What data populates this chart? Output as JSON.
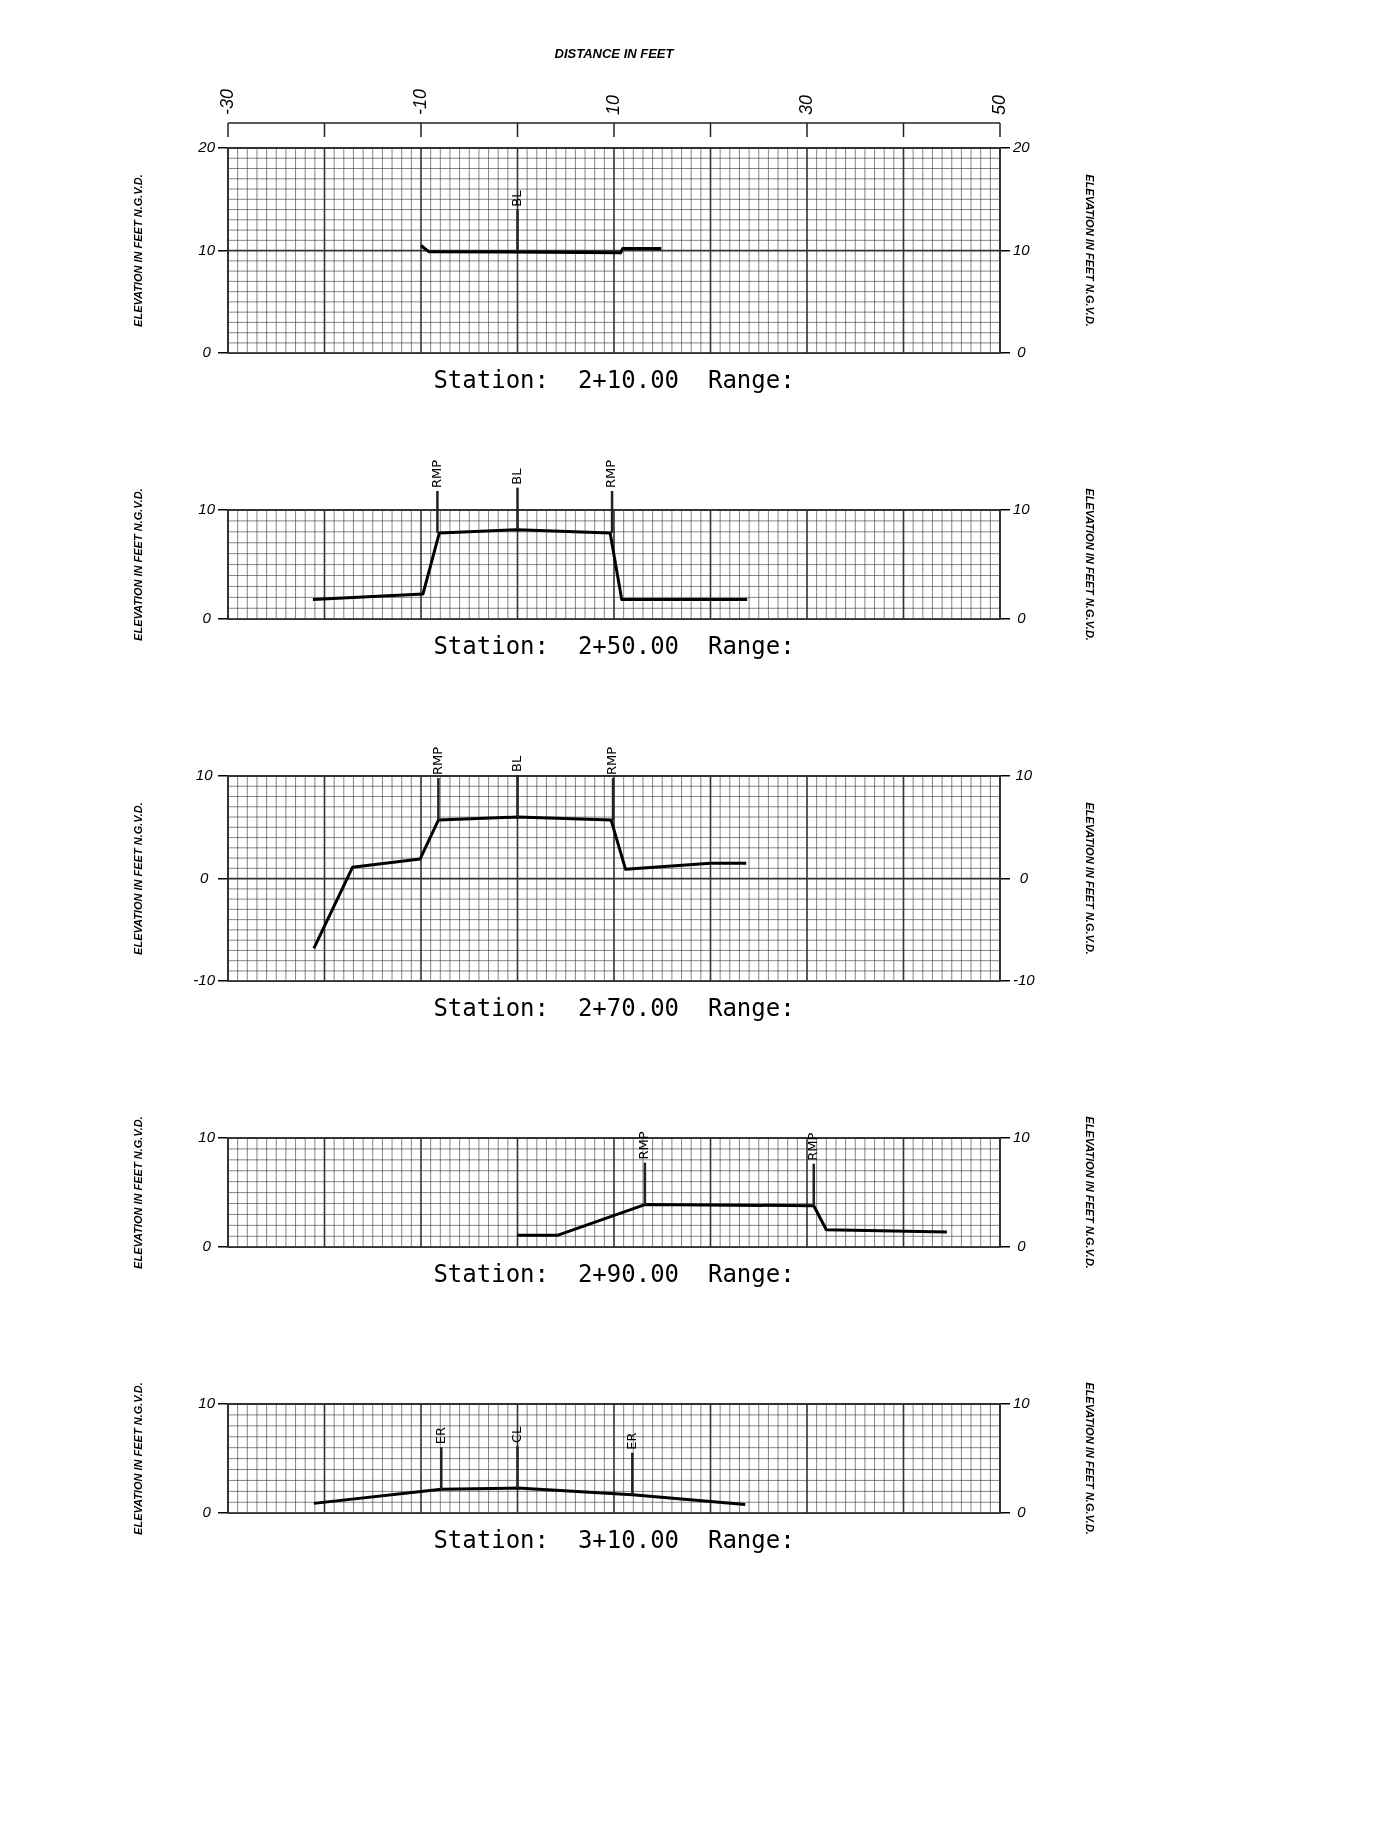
{
  "chart_data": [
    {
      "type": "line",
      "title": "Station:  2+10.00  Range:",
      "xlabel": "DISTANCE IN FEET",
      "xlim": [
        -30,
        50
      ],
      "xticks": [
        -30,
        {
          "value": -20,
          "label": null
        },
        -10,
        {
          "value": 0,
          "label": null
        },
        10,
        {
          "value": 20,
          "label": null
        },
        30,
        {
          "value": 40,
          "label": null
        },
        50
      ],
      "ylim": [
        0,
        20
      ],
      "yticks": [
        0,
        10,
        20
      ],
      "y2lim": [
        0,
        20
      ],
      "y2ticks": [
        0,
        10,
        20
      ],
      "ylabel": "ELEVATION IN FEET N.G.V.D.",
      "y2label": "ELEVATION IN FEET N.G.V.D.",
      "grid": true,
      "series": [
        {
          "color": "#000000",
          "x": [
            -10,
            -9.2,
            10.7,
            10.9,
            14.9
          ],
          "values": [
            10.5,
            9.9,
            9.8,
            10.2,
            10.2
          ]
        }
      ],
      "annotations": [
        {
          "text": "BL",
          "x": 0,
          "y": 9.9
        }
      ]
    },
    {
      "type": "line",
      "title": "Station:  2+50.00  Range:",
      "xlim": [
        -30,
        50
      ],
      "ylim": [
        0,
        10
      ],
      "yticks": [
        0,
        10
      ],
      "y2lim": [
        0,
        10
      ],
      "y2ticks": [
        0,
        10
      ],
      "ylabel": "ELEVATION IN FEET N.G.V.D.",
      "y2label": "ELEVATION IN FEET N.G.V.D.",
      "tick_labels": "y",
      "grid": true,
      "series": [
        {
          "color": "#000000",
          "x": [
            -21.2,
            -9.8,
            -8.1,
            0,
            9.6,
            10.8,
            23.8
          ],
          "values": [
            1.8,
            2.3,
            7.9,
            8.2,
            7.9,
            1.8,
            1.8
          ]
        }
      ],
      "annotations": [
        {
          "text": "RMP",
          "x": -8.3,
          "y": 7.9
        },
        {
          "text": "BL",
          "x": 0,
          "y": 8.2
        },
        {
          "text": "RMP",
          "x": 9.8,
          "y": 7.9
        }
      ]
    },
    {
      "type": "line",
      "title": "Station:  2+70.00  Range:",
      "xlim": [
        -30,
        50
      ],
      "ylim": [
        -10,
        10
      ],
      "yticks": [
        -10,
        0,
        10
      ],
      "y2lim": [
        -10,
        10
      ],
      "y2ticks": [
        -10,
        0,
        10
      ],
      "ylabel": "ELEVATION IN FEET N.G.V.D.",
      "y2label": "ELEVATION IN FEET N.G.V.D.",
      "tick_labels": "y",
      "grid": true,
      "series": [
        {
          "color": "#000000",
          "x": [
            -21.1,
            -17.1,
            -10.1,
            -8.2,
            0,
            9.7,
            11.2,
            20,
            23.7
          ],
          "values": [
            -6.8,
            1.1,
            1.9,
            5.7,
            6,
            5.7,
            0.9,
            1.5,
            1.5
          ]
        }
      ],
      "annotations": [
        {
          "text": "RMP",
          "x": -8.2,
          "y": 5.7
        },
        {
          "text": "BL",
          "x": 0,
          "y": 6
        },
        {
          "text": "RMP",
          "x": 9.9,
          "y": 5.7
        }
      ]
    },
    {
      "type": "line",
      "title": "Station:  2+90.00  Range:",
      "xlim": [
        -30,
        50
      ],
      "ylim": [
        0,
        10
      ],
      "yticks": [
        0,
        10
      ],
      "y2lim": [
        0,
        10
      ],
      "y2ticks": [
        0,
        10
      ],
      "ylabel": "ELEVATION IN FEET N.G.V.D.",
      "y2label": "ELEVATION IN FEET N.G.V.D.",
      "tick_labels": "y",
      "grid": true,
      "series": [
        {
          "color": "#000000",
          "x": [
            0,
            4.2,
            13.2,
            30.7,
            32,
            44.5
          ],
          "values": [
            1.1,
            1.1,
            3.9,
            3.8,
            1.6,
            1.4
          ]
        }
      ],
      "annotations": [
        {
          "text": "RMP",
          "x": 13.2,
          "y": 3.9
        },
        {
          "text": "RMP",
          "x": 30.7,
          "y": 3.8
        }
      ]
    },
    {
      "type": "line",
      "title": "Station:  3+10.00  Range:",
      "xlim": [
        -30,
        50
      ],
      "ylim": [
        0,
        10
      ],
      "yticks": [
        0,
        10
      ],
      "y2lim": [
        0,
        10
      ],
      "y2ticks": [
        0,
        10
      ],
      "ylabel": "ELEVATION IN FEET N.G.V.D.",
      "y2label": "ELEVATION IN FEET N.G.V.D.",
      "tick_labels": "y",
      "grid": true,
      "series": [
        {
          "color": "#000000",
          "x": [
            -21.1,
            -7.9,
            0,
            11.9,
            23.6
          ],
          "values": [
            0.9,
            2.2,
            2.3,
            1.7,
            0.8
          ]
        }
      ],
      "annotations": [
        {
          "text": "ER",
          "x": -7.9,
          "y": 2.2
        },
        {
          "text": "CL",
          "x": 0,
          "y": 2.3
        },
        {
          "text": "ER",
          "x": 11.9,
          "y": 1.7
        }
      ]
    }
  ]
}
